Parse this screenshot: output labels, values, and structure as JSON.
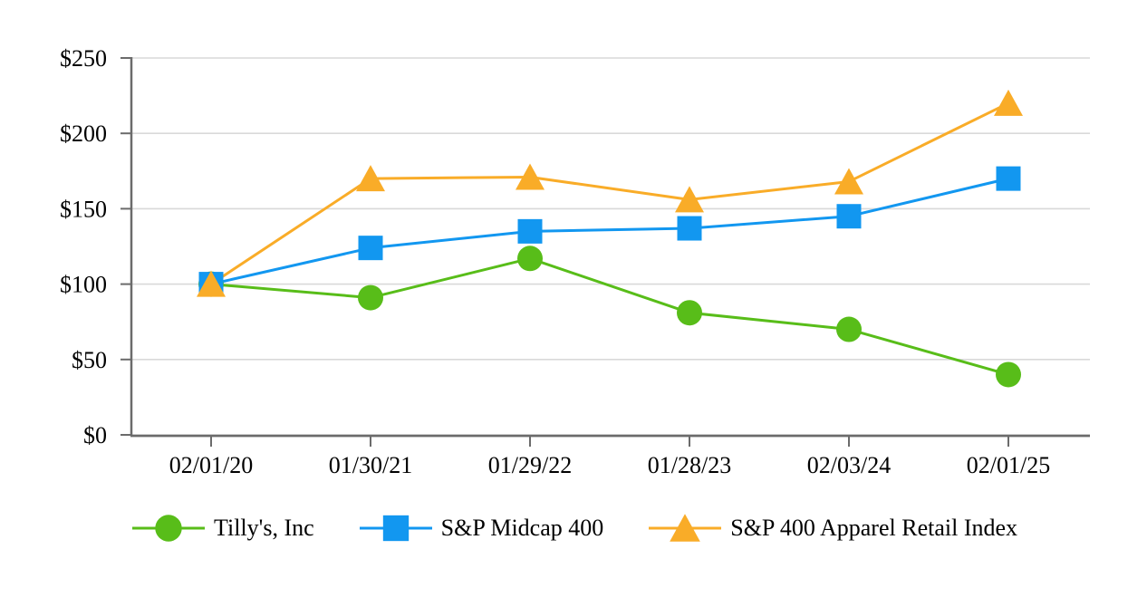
{
  "chart_data": {
    "type": "line",
    "categories": [
      "02/01/20",
      "01/30/21",
      "01/29/22",
      "01/28/23",
      "02/03/24",
      "02/01/25"
    ],
    "series": [
      {
        "name": "Tilly's, Inc",
        "marker": "circle",
        "color": "#58bd19",
        "values": [
          100,
          91,
          117,
          81,
          70,
          40
        ]
      },
      {
        "name": "S&P Midcap 400",
        "marker": "square",
        "color": "#1297f0",
        "values": [
          100,
          124,
          135,
          137,
          145,
          170
        ]
      },
      {
        "name": "S&P 400 Apparel Retail Index",
        "marker": "triangle",
        "color": "#f9ac28",
        "values": [
          100,
          170,
          171,
          156,
          168,
          220
        ]
      }
    ],
    "y_axis": {
      "min": 0,
      "max": 250,
      "step": 50,
      "tick_labels": [
        "$0",
        "$50",
        "$100",
        "$150",
        "$200",
        "$250"
      ]
    },
    "xlabel": "",
    "ylabel": "",
    "grid": "horizontal",
    "legend_position": "bottom",
    "colors": {
      "grid": "#d9d9d9",
      "axis": "#6b6b6b",
      "text": "#000000",
      "background": "#ffffff"
    }
  }
}
